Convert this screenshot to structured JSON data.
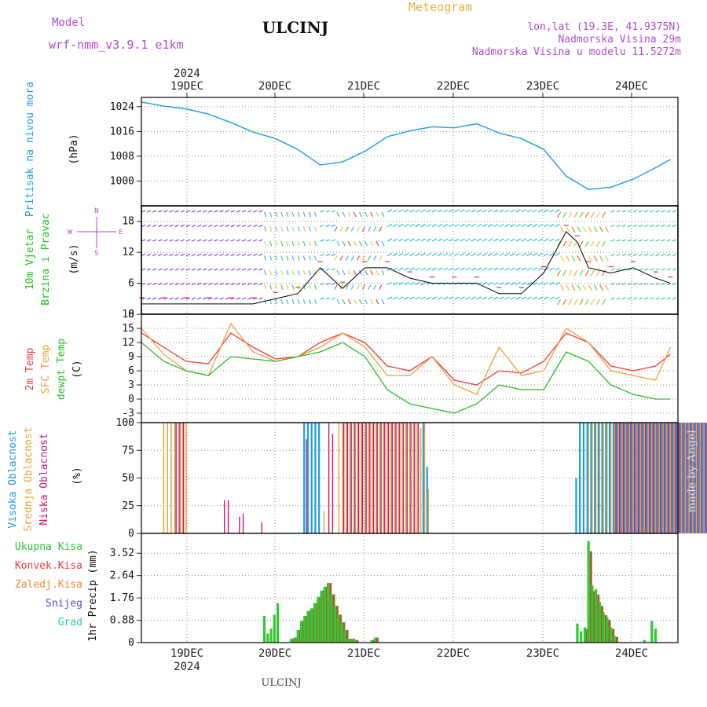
{
  "header": {
    "model_label": "Model",
    "model_name": "wrf-nmm_v3.9.1 e1km",
    "station": "ULCINJ",
    "product": "Meteogram",
    "coords": "lon,lat (19.3E, 41.9375N)",
    "altitude": "Nadmorska Visina 29m",
    "model_altitude": "Nadmorska Visina u modelu 11.5272m"
  },
  "footer": {
    "station": "ULCINJ",
    "credit": "made by Angel"
  },
  "colors": {
    "pressure": "#1f9ee8",
    "t2m": "#f03a3a",
    "tsfc": "#e9a23a",
    "dewpt": "#25c025",
    "cloud_high": "#1e9be8",
    "cloud_mid": "#d8a630",
    "cloud_low": "#c8187a",
    "precip_total": "#33c633",
    "precip_conv": "#a0602a",
    "wind_label": "#1cc21c",
    "compass": "#b44ad0",
    "header_purple": "#b44ad0",
    "meteogram": "#e8b040"
  },
  "chart_data": [
    {
      "type": "line",
      "title": "",
      "ylabel": [
        "Pritisak na nivou mora",
        "(hPa)"
      ],
      "ylim": [
        992,
        1027
      ],
      "yticks": [
        1000,
        1008,
        1016,
        1024
      ],
      "x_top_year": "2024",
      "x_labels": [
        "19DEC",
        "20DEC",
        "21DEC",
        "22DEC",
        "23DEC",
        "24DEC"
      ],
      "x": [
        0,
        6,
        12,
        18,
        24,
        30,
        36,
        42,
        48,
        54,
        60,
        66,
        72,
        78,
        84,
        90,
        96,
        102,
        108,
        114,
        120,
        126,
        132,
        138,
        142
      ],
      "series": [
        {
          "values": [
            1025.5,
            1024.2,
            1023.3,
            1021.6,
            1018.9,
            1015.8,
            1013.7,
            1010.2,
            1005.2,
            1006.2,
            1009.6,
            1014.3,
            1016.2,
            1017.5,
            1017.2,
            1018.5,
            1015.5,
            1013.7,
            1010.2,
            1001.6,
            997.3,
            998.0,
            1000.6,
            1004.3,
            1007.0
          ]
        }
      ]
    },
    {
      "type": "line",
      "title": "",
      "ylabel": [
        "10m Vjetar",
        "Brzina i Pravac",
        "(m/s)"
      ],
      "compass": [
        "N",
        "W",
        "E",
        "S"
      ],
      "ylim": [
        0,
        21
      ],
      "yticks": [
        0,
        6,
        12,
        18
      ],
      "x": [
        0,
        6,
        12,
        18,
        24,
        30,
        36,
        42,
        48,
        54,
        60,
        66,
        72,
        78,
        84,
        90,
        96,
        102,
        108,
        114,
        117,
        120,
        126,
        132,
        138,
        142
      ],
      "series": [
        {
          "name": "10m wind speed",
          "values": [
            2,
            2,
            2,
            2,
            2,
            2,
            3,
            4,
            9,
            5,
            9,
            9,
            7,
            6,
            6,
            6,
            4,
            4,
            8,
            16,
            14,
            9,
            8,
            9,
            7,
            6
          ]
        }
      ]
    },
    {
      "type": "line",
      "title": "",
      "ylabel": [
        "2m Temp",
        "SFC Temp",
        "dewpt Temp",
        "(C)"
      ],
      "ylim": [
        -5,
        18
      ],
      "yticks": [
        -3,
        0,
        3,
        6,
        9,
        12,
        15,
        18
      ],
      "x": [
        0,
        6,
        12,
        18,
        24,
        30,
        36,
        42,
        48,
        54,
        60,
        66,
        72,
        78,
        84,
        90,
        96,
        102,
        108,
        114,
        120,
        126,
        132,
        138,
        142
      ],
      "series": [
        {
          "name": "2m Temp",
          "values": [
            14,
            11,
            8,
            7.5,
            14,
            11,
            8.5,
            9,
            12,
            14,
            12,
            7,
            6,
            9,
            4,
            3,
            6,
            5.5,
            8,
            14,
            12,
            7,
            6,
            7,
            9.5
          ]
        },
        {
          "name": "SFC Temp",
          "values": [
            15,
            9.5,
            6,
            5,
            16,
            10,
            8,
            9,
            11,
            14,
            11,
            5,
            5,
            9,
            3,
            1,
            11,
            5,
            6,
            15,
            12,
            6,
            5,
            4,
            11
          ]
        },
        {
          "name": "dewpt Temp",
          "values": [
            12,
            8,
            6,
            5,
            9,
            8.5,
            8,
            9,
            10,
            12,
            9,
            2,
            -1,
            -2,
            -3,
            -1,
            3,
            2,
            2,
            10,
            8,
            3,
            1,
            0,
            0
          ]
        }
      ]
    },
    {
      "type": "bar",
      "title": "",
      "ylabel": [
        "Visoka Oblacnost",
        "Srednja Oblacnost",
        "Niska Oblacnost",
        "(%)"
      ],
      "ylim": [
        0,
        100
      ],
      "yticks": [
        0,
        25,
        50,
        75,
        100
      ],
      "x_start": 6,
      "series": [
        {
          "name": "Visoka Oblacnost",
          "values": [
            0,
            0,
            0,
            0,
            0,
            0,
            0,
            0,
            0,
            0,
            0,
            0,
            0,
            0,
            0,
            0,
            0,
            0,
            0,
            0,
            0,
            0,
            0,
            0,
            0,
            0,
            0,
            0,
            0,
            0,
            0,
            0,
            0,
            0,
            0,
            0,
            0,
            0,
            100,
            100,
            100,
            100,
            100,
            0,
            0,
            0,
            0,
            0,
            0,
            0,
            0,
            0,
            0,
            0,
            0,
            0,
            0,
            0,
            0,
            0,
            0,
            0,
            0,
            0,
            0,
            0,
            0,
            0,
            0,
            0,
            100,
            60,
            0,
            0,
            0,
            0,
            0,
            0,
            0,
            0,
            0,
            0,
            0,
            0,
            0,
            0,
            0,
            0,
            0,
            0,
            0,
            0,
            0,
            0,
            0,
            0,
            0,
            0,
            0,
            0,
            0,
            0,
            0,
            0,
            0,
            0,
            0,
            0,
            0,
            0,
            0,
            50,
            100,
            100,
            100,
            100,
            100,
            100,
            100,
            100,
            100,
            100,
            100,
            100,
            100,
            100,
            100,
            100,
            100,
            100,
            100,
            100,
            100,
            100,
            100,
            100,
            100,
            100,
            100,
            100,
            100,
            100,
            100,
            100,
            100,
            100,
            100,
            100,
            100
          ]
        },
        {
          "name": "Srednja Oblacnost",
          "values": [
            100,
            100,
            100,
            100,
            100,
            100,
            100,
            0,
            0,
            0,
            0,
            0,
            0,
            0,
            0,
            0,
            0,
            0,
            0,
            0,
            0,
            0,
            0,
            0,
            0,
            0,
            0,
            0,
            0,
            0,
            0,
            0,
            0,
            0,
            0,
            0,
            0,
            0,
            0,
            0,
            0,
            0,
            0,
            20,
            0,
            0,
            0,
            100,
            100,
            100,
            100,
            100,
            100,
            100,
            100,
            100,
            100,
            100,
            100,
            100,
            100,
            100,
            100,
            100,
            100,
            100,
            100,
            100,
            100,
            95,
            100,
            40,
            0,
            0,
            0,
            0,
            0,
            0,
            0,
            0,
            0,
            0,
            0,
            0,
            0,
            0,
            0,
            0,
            0,
            0,
            0,
            0,
            0,
            0,
            0,
            0,
            0,
            0,
            0,
            0,
            0,
            0,
            0,
            0,
            0,
            0,
            0,
            0,
            0,
            0,
            0,
            0,
            0,
            0,
            100,
            100,
            100,
            100,
            100,
            100,
            100,
            100,
            100,
            100,
            100,
            100,
            100,
            100,
            100,
            100,
            100,
            100,
            100,
            100,
            100,
            100,
            100,
            100,
            100,
            100,
            100,
            100,
            100,
            100,
            100,
            100
          ]
        },
        {
          "name": "Niska Oblacnost",
          "values": [
            0,
            0,
            0,
            100,
            100,
            100,
            0,
            0,
            0,
            0,
            0,
            0,
            0,
            0,
            0,
            0,
            30,
            30,
            0,
            0,
            15,
            18,
            0,
            0,
            0,
            0,
            10,
            0,
            0,
            0,
            0,
            0,
            0,
            0,
            0,
            0,
            0,
            0,
            85,
            0,
            0,
            0,
            0,
            0,
            100,
            90,
            0,
            0,
            100,
            100,
            100,
            100,
            100,
            100,
            100,
            100,
            100,
            100,
            100,
            100,
            100,
            100,
            100,
            100,
            100,
            100,
            100,
            100,
            100,
            0,
            0,
            0,
            0,
            0,
            0,
            0,
            0,
            0,
            0,
            0,
            0,
            0,
            0,
            0,
            0,
            0,
            0,
            0,
            0,
            0,
            0,
            0,
            0,
            0,
            0,
            0,
            0,
            0,
            0,
            0,
            0,
            0,
            0,
            0,
            0,
            0,
            0,
            0,
            0,
            0,
            0,
            0,
            0,
            0,
            0,
            0,
            0,
            0,
            0,
            0,
            0,
            100,
            100,
            100,
            100,
            100,
            100,
            100,
            100,
            100,
            100,
            100,
            100,
            100,
            100,
            100,
            100,
            100,
            100,
            100,
            100,
            100,
            100,
            100,
            100,
            100,
            100,
            100
          ]
        }
      ]
    },
    {
      "type": "bar",
      "title": "",
      "ylabel": [
        "1hr Precip (mm)"
      ],
      "legend": [
        "Ukupna Kisa",
        "Konvek.Kisa",
        "Zaledj.Kisa",
        "Snijeg",
        "Grad"
      ],
      "legend_colors": [
        "#33c633",
        "#f03a3a",
        "#f08a3a",
        "#4a4ae0",
        "#2ac8b0"
      ],
      "ylim": [
        0,
        4.3
      ],
      "yticks": [
        0,
        0.88,
        1.76,
        2.64,
        3.52
      ],
      "x_bottom_labels": [
        "19DEC",
        "20DEC",
        "21DEC",
        "22DEC",
        "23DEC",
        "24DEC"
      ],
      "x_bottom_year": "2024",
      "x_start": 33,
      "series": [
        {
          "name": "Ukupna Kisa",
          "values": [
            1.05,
            0.35,
            0.55,
            1.1,
            1.55,
            0,
            0,
            0,
            0.15,
            0.2,
            0.5,
            0.85,
            1.05,
            1.25,
            1.35,
            1.55,
            1.8,
            2.05,
            2.2,
            2.35,
            1.9,
            1.45,
            1.1,
            0.8,
            0.5,
            0.15,
            0.15,
            0.1,
            0,
            0,
            0,
            0,
            0.1,
            0.2
          ]
        },
        {
          "name": "Konvek.Kisa",
          "values": [
            0,
            0,
            0,
            0,
            0,
            0,
            0,
            0,
            0.15,
            0.2,
            0.5,
            0.85,
            1.05,
            1.25,
            1.35,
            1.55,
            1.8,
            2.05,
            2.2,
            2.35,
            1.9,
            1.45,
            1.1,
            0.8,
            0.5,
            0.15,
            0.15,
            0.1,
            0,
            0,
            0,
            0,
            0.1,
            0.2
          ]
        },
        {
          "name": "Ukupna Kisa (23-24 DEC)",
          "values": [
            0.75,
            0.45,
            0.6,
            4.0,
            2.25,
            2.1,
            1.6,
            1.2,
            1.0,
            0.6,
            0.25,
            0.0,
            0.0,
            0.0,
            0.0,
            0.0,
            0.0,
            0.0,
            0.1,
            0.0,
            0.85,
            0.55
          ]
        }
      ]
    }
  ]
}
